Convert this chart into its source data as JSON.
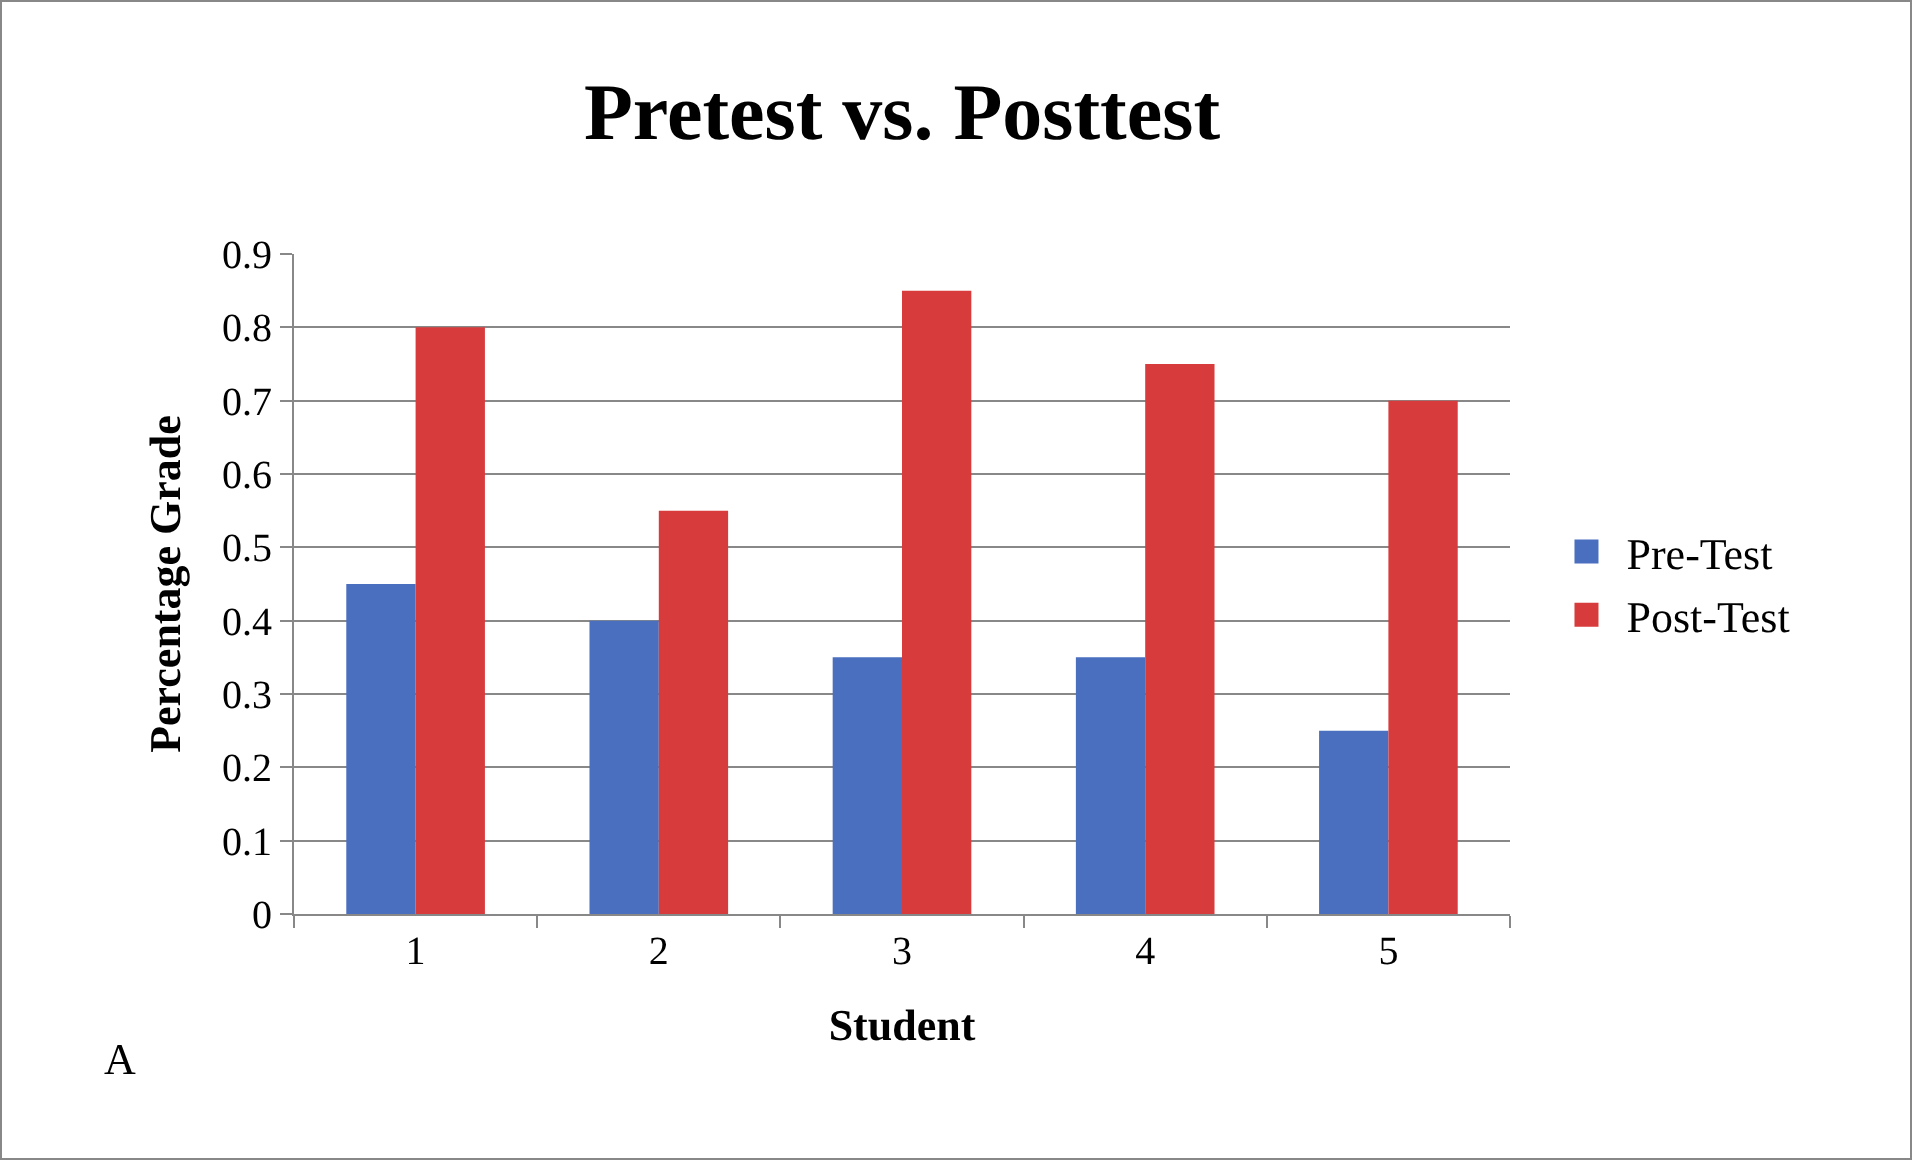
{
  "chart_data": {
    "type": "bar",
    "title": "Pretest vs. Posttest",
    "xlabel": "Student",
    "ylabel": "Percentage Grade",
    "categories": [
      "1",
      "2",
      "3",
      "4",
      "5"
    ],
    "series": [
      {
        "name": "Pre-Test",
        "color": "#4a6fbf",
        "values": [
          0.45,
          0.4,
          0.35,
          0.35,
          0.25
        ]
      },
      {
        "name": "Post-Test",
        "color": "#d83b3b",
        "values": [
          0.8,
          0.55,
          0.85,
          0.75,
          0.7
        ]
      }
    ],
    "ylim": [
      0,
      0.9
    ],
    "yticks": [
      0,
      0.1,
      0.2,
      0.3,
      0.4,
      0.5,
      0.6,
      0.7,
      0.8,
      0.9
    ],
    "grid": "y",
    "legend": "right",
    "annotations": [
      "A"
    ]
  }
}
